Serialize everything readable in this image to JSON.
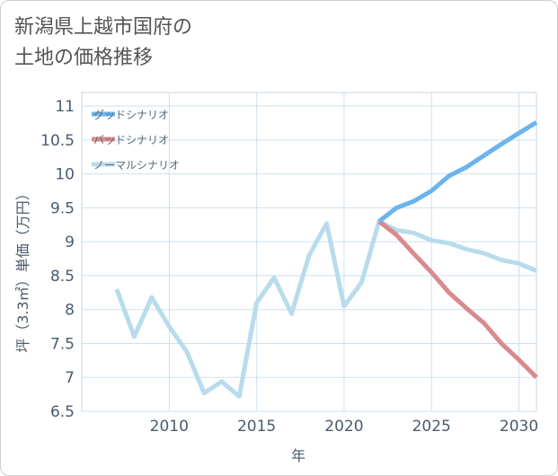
{
  "title": "新潟県上越市国府の\n土地の価格推移",
  "chart_data": {
    "type": "line",
    "xlabel": "年",
    "ylabel": "坪（3.3㎡）単価（万円）",
    "xlim": [
      2005,
      2031
    ],
    "ylim": [
      6.5,
      11.2
    ],
    "x_ticks": [
      2010,
      2015,
      2020,
      2025,
      2030
    ],
    "y_ticks": [
      6.5,
      7,
      7.5,
      8,
      8.5,
      9,
      9.5,
      10,
      10.5,
      11
    ],
    "y_tick_labels": [
      "6.5",
      "7",
      "7.5",
      "8",
      "8.5",
      "9",
      "9.5",
      "10",
      "10.5",
      "11"
    ],
    "legend_position": "top-left",
    "grid": true,
    "series": [
      {
        "name": "グッドシナリオ",
        "color": "#6ab4ee",
        "x": [
          2022,
          2023,
          2024,
          2025,
          2026,
          2027,
          2028,
          2029,
          2030,
          2031
        ],
        "y": [
          9.3,
          9.5,
          9.6,
          9.75,
          9.97,
          10.1,
          10.27,
          10.44,
          10.6,
          10.76
        ]
      },
      {
        "name": "バッドシナリオ",
        "color": "#d98a8f",
        "x": [
          2022,
          2023,
          2024,
          2025,
          2026,
          2027,
          2028,
          2029,
          2030,
          2031
        ],
        "y": [
          9.3,
          9.1,
          8.82,
          8.55,
          8.25,
          8.02,
          7.8,
          7.5,
          7.26,
          7.0
        ]
      },
      {
        "name": "ノーマルシナリオ",
        "color": "#b8dcec",
        "x": [
          2007,
          2008,
          2009,
          2010,
          2011,
          2012,
          2013,
          2014,
          2015,
          2016,
          2017,
          2018,
          2019,
          2020,
          2021,
          2022,
          2023,
          2024,
          2025,
          2026,
          2027,
          2028,
          2029,
          2030,
          2031
        ],
        "y": [
          8.3,
          7.6,
          8.18,
          7.75,
          7.38,
          6.77,
          6.94,
          6.72,
          8.1,
          8.47,
          7.94,
          8.8,
          9.27,
          8.05,
          8.4,
          9.3,
          9.17,
          9.13,
          9.02,
          8.98,
          8.89,
          8.83,
          8.73,
          8.68,
          8.57
        ]
      }
    ]
  }
}
